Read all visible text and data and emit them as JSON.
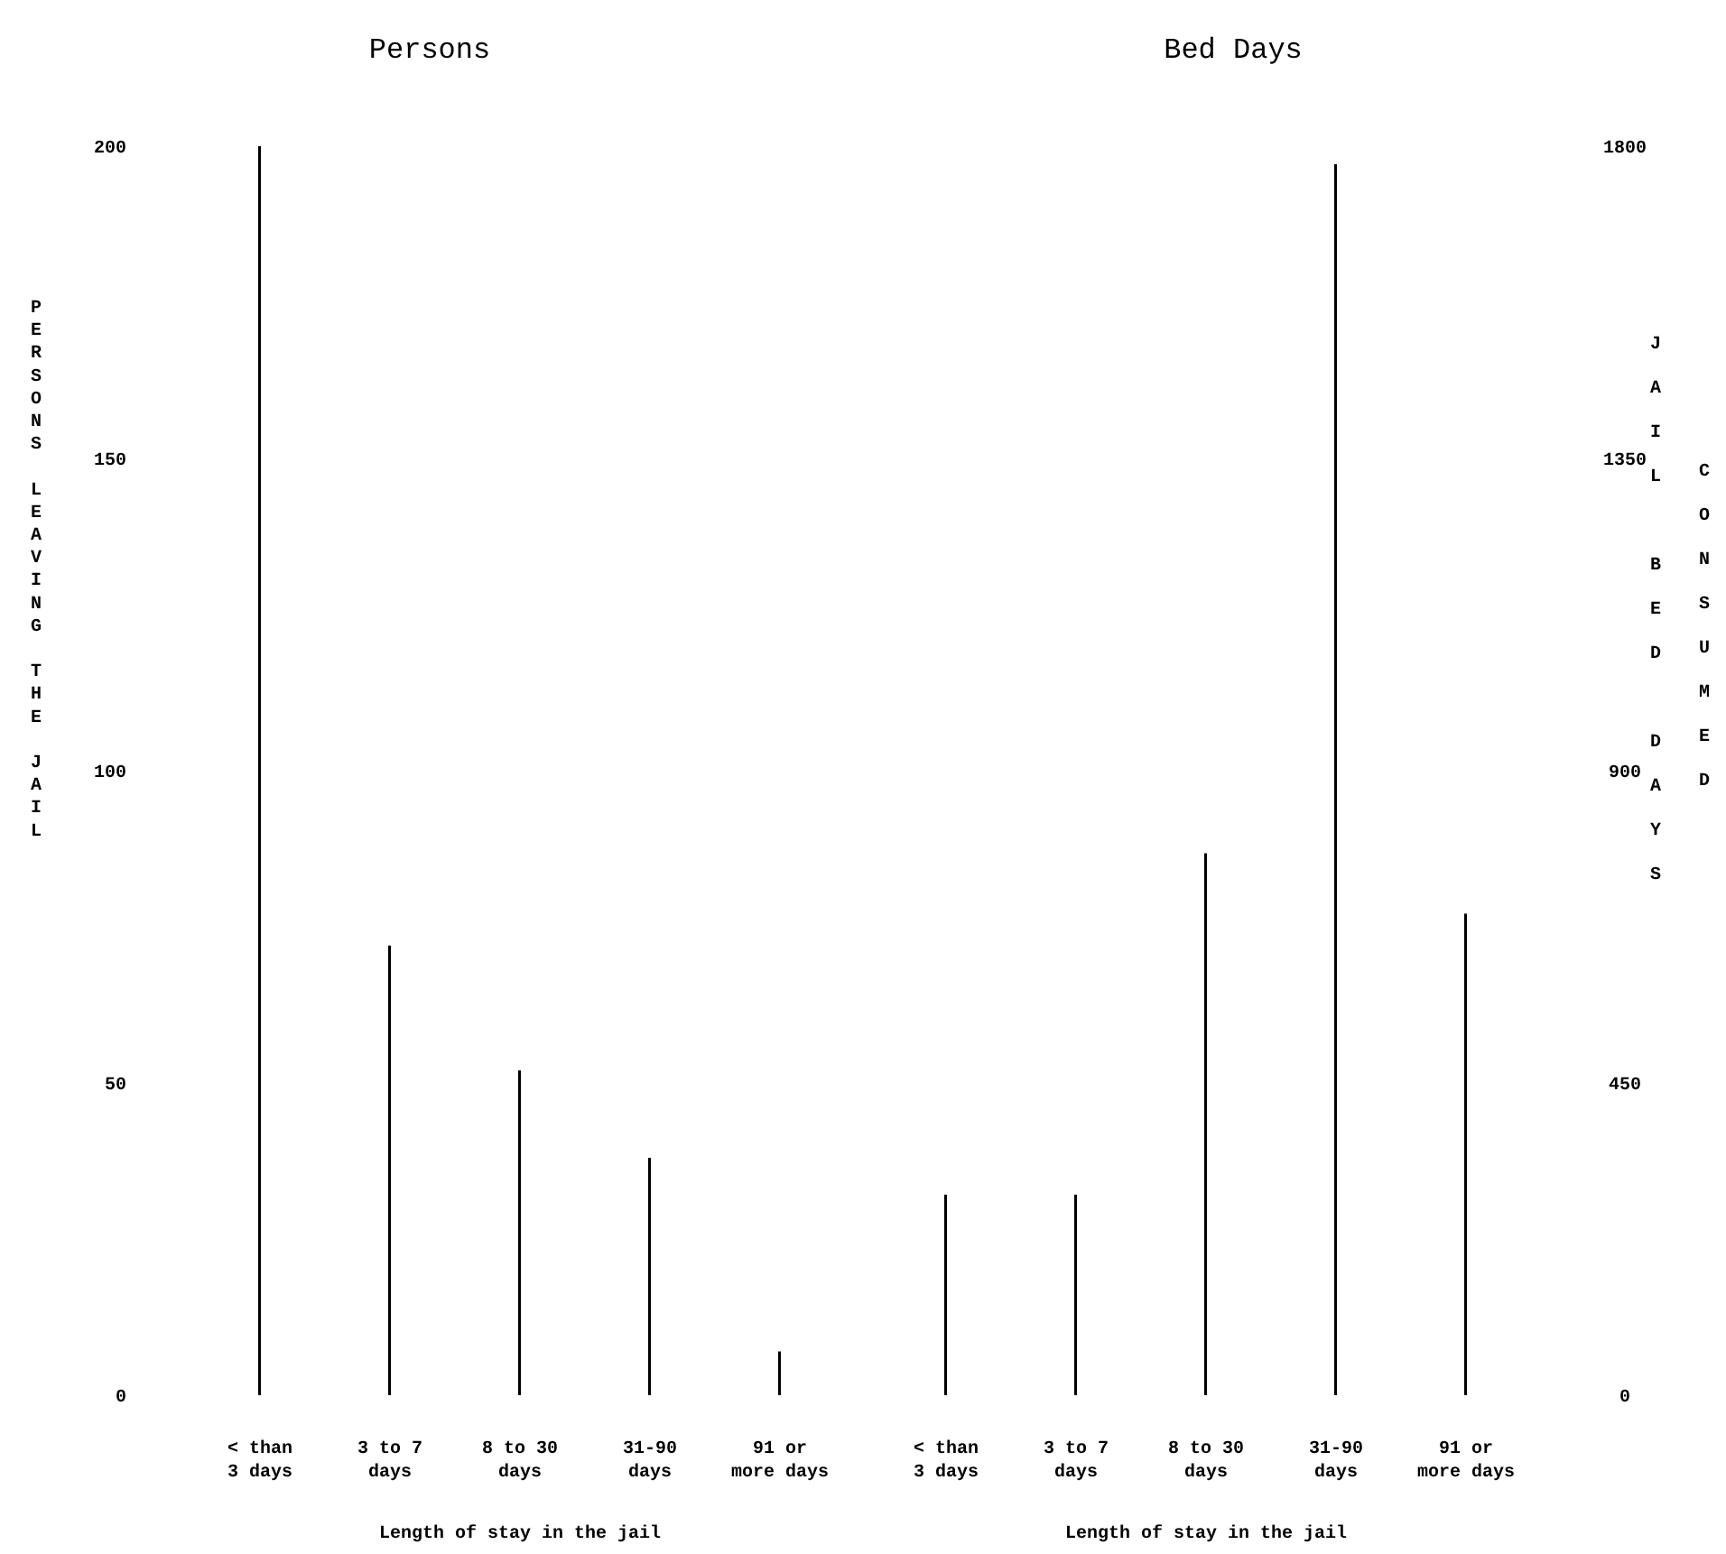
{
  "chart_data": [
    {
      "type": "bar",
      "title": "Persons",
      "xlabel": "Length of stay in the jail",
      "ylabel": "PERSONS LEAVING THE JAIL",
      "categories": [
        "< than 3 days",
        "3 to 7 days",
        "8 to 30 days",
        "31-90 days",
        "91 or more days"
      ],
      "values": [
        200,
        72,
        52,
        38,
        7
      ],
      "color": "#000000",
      "ylim": [
        0,
        200
      ],
      "yticks": [
        0,
        50,
        100,
        150,
        200
      ],
      "grid": false
    },
    {
      "type": "bar",
      "title": "Bed Days",
      "xlabel": "Length of stay in the jail",
      "y2label": "JAIL BED DAYS CONSUMED",
      "categories": [
        "< than 3 days",
        "3 to 7 days",
        "8 to 30 days",
        "31-90 days",
        "91 or more days"
      ],
      "series": [
        {
          "axis": "y2",
          "color": "#000000",
          "values": [
            289,
            289,
            781,
            1774,
            694
          ]
        }
      ],
      "y2lim": [
        0,
        1800
      ],
      "y2ticks": [
        0,
        450,
        900,
        1350,
        1800
      ],
      "grid": false
    }
  ]
}
